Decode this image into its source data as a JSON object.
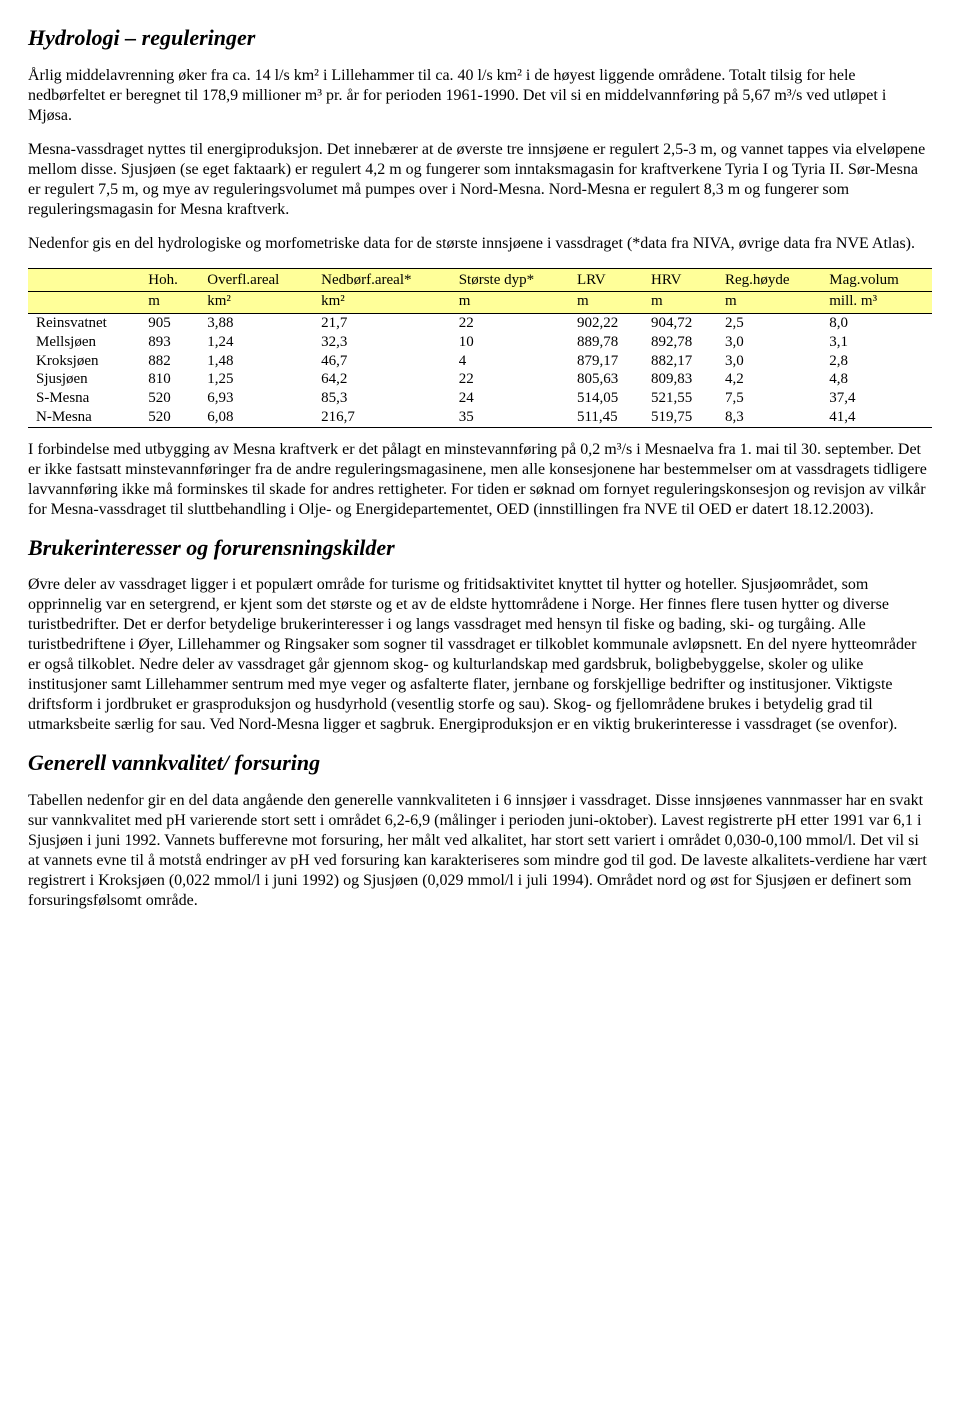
{
  "section1": {
    "title": "Hydrologi – reguleringer",
    "p1": "Årlig middelavrenning øker fra ca. 14 l/s km² i Lillehammer til ca. 40 l/s km² i de høyest liggende områdene. Totalt tilsig for hele nedbørfeltet er beregnet til 178,9 millioner m³ pr. år for perioden 1961-1990. Det vil si en middelvannføring på 5,67 m³/s ved utløpet i Mjøsa.",
    "p2": "Mesna-vassdraget nyttes til energiproduksjon. Det innebærer at de øverste tre innsjøene er regulert 2,5-3 m, og vannet tappes via elveløpene mellom disse. Sjusjøen (se eget faktaark) er regulert 4,2 m og fungerer som inntaksmagasin for kraftverkene Tyria I og Tyria II. Sør-Mesna er regulert 7,5 m, og mye av reguleringsvolumet må pumpes over i Nord-Mesna. Nord-Mesna er regulert 8,3 m og fungerer som reguleringsmagasin for Mesna kraftverk.",
    "p3": "Nedenfor gis en del hydrologiske og morfometriske data for de største innsjøene i vassdraget (*data fra NIVA, øvrige data fra NVE Atlas)."
  },
  "table": {
    "headers": [
      "",
      "Hoh.",
      "Overfl.areal",
      "Nedbørf.areal*",
      "Største dyp*",
      "LRV",
      "HRV",
      "Reg.høyde",
      "Mag.volum"
    ],
    "units": [
      "",
      "m",
      "km²",
      "km²",
      "m",
      "m",
      "m",
      "m",
      "mill. m³"
    ],
    "rows": [
      [
        "Reinsvatnet",
        "905",
        "3,88",
        "21,7",
        "22",
        "902,22",
        "904,72",
        "2,5",
        "8,0"
      ],
      [
        "Mellsjøen",
        "893",
        "1,24",
        "32,3",
        "10",
        "889,78",
        "892,78",
        "3,0",
        "3,1"
      ],
      [
        "Kroksjøen",
        "882",
        "1,48",
        "46,7",
        "4",
        "879,17",
        "882,17",
        "3,0",
        "2,8"
      ],
      [
        "Sjusjøen",
        "810",
        "1,25",
        "64,2",
        "22",
        "805,63",
        "809,83",
        "4,2",
        "4,8"
      ],
      [
        "S-Mesna",
        "520",
        "6,93",
        "85,3",
        "24",
        "514,05",
        "521,55",
        "7,5",
        "37,4"
      ],
      [
        "N-Mesna",
        "520",
        "6,08",
        "216,7",
        "35",
        "511,45",
        "519,75",
        "8,3",
        "41,4"
      ]
    ],
    "header_bg": "#ffff99",
    "border_color": "#000000"
  },
  "p4": "I forbindelse med utbygging av Mesna kraftverk er det pålagt en minstevannføring på 0,2 m³/s i Mesnaelva fra 1. mai til 30. september. Det er ikke fastsatt minstevannføringer fra de andre reguleringsmagasinene, men alle konsesjonene har bestemmelser om at vassdragets tidligere lavvannføring ikke må forminskes til skade for andres rettigheter. For tiden er søknad om fornyet reguleringskonsesjon og revisjon av vilkår for Mesna-vassdraget til sluttbehandling i Olje- og Energidepartementet, OED (innstillingen fra NVE til OED er datert 18.12.2003).",
  "section2": {
    "title": "Brukerinteresser og forurensningskilder",
    "p1": "Øvre deler av vassdraget ligger i et populært område for turisme og fritidsaktivitet knyttet til hytter og hoteller. Sjusjøområdet, som opprinnelig var en setergrend, er kjent som det største og et av de eldste hyttområdene i Norge. Her finnes flere tusen hytter og diverse turistbedrifter. Det er derfor betydelige brukerinteresser i og langs vassdraget med hensyn til fiske og bading, ski- og turgåing. Alle turistbedriftene i Øyer, Lillehammer og Ringsaker som sogner til vassdraget er tilkoblet kommunale avløpsnett. En del nyere hytteområder er også tilkoblet. Nedre deler av vassdraget går gjennom skog- og kulturlandskap med gardsbruk, boligbebyggelse, skoler og ulike institusjoner samt Lillehammer sentrum med mye veger og asfalterte flater, jernbane og forskjellige bedrifter og institusjoner. Viktigste driftsform i jordbruket er grasproduksjon og husdyrhold (vesentlig storfe og sau). Skog- og fjellområdene brukes i betydelig grad til utmarksbeite særlig for sau. Ved Nord-Mesna ligger et sagbruk. Energiproduksjon er en viktig brukerinteresse i vassdraget (se ovenfor)."
  },
  "section3": {
    "title": "Generell vannkvalitet/ forsuring",
    "p1": "Tabellen nedenfor gir en del data angående den generelle vannkvaliteten i 6 innsjøer i vassdraget. Disse innsjøenes vannmasser har en svakt sur vannkvalitet med pH varierende stort sett i området 6,2-6,9 (målinger i perioden juni-oktober). Lavest registrerte pH etter 1991 var 6,1 i Sjusjøen i juni 1992. Vannets bufferevne mot forsuring, her målt ved alkalitet, har stort sett variert i området 0,030-0,100 mmol/l. Det vil si at vannets evne til å motstå endringer av pH ved forsuring kan karakteriseres som mindre god til god. De laveste alkalitets-verdiene har vært registrert i Kroksjøen (0,022 mmol/l i juni 1992) og Sjusjøen (0,029 mmol/l i juli 1994). Området nord og øst for Sjusjøen er definert som forsuringsfølsomt område."
  }
}
